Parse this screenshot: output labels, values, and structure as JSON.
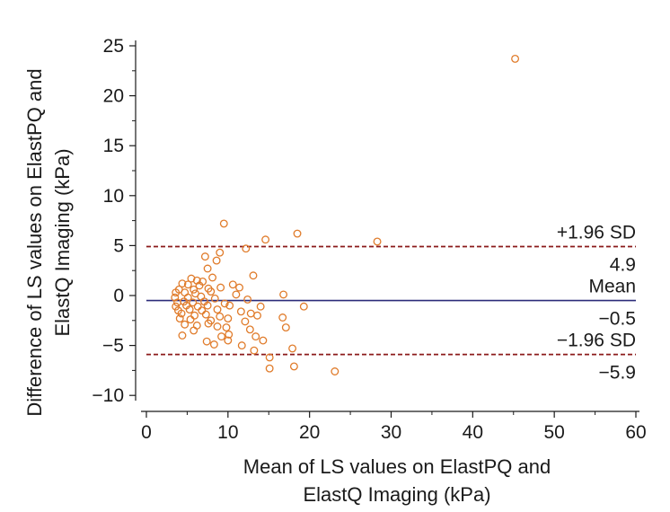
{
  "chart_data": {
    "type": "scatter",
    "title": "",
    "xlabel": [
      "Mean of LS values on ElastPQ and",
      "ElastQ Imaging (kPa)"
    ],
    "ylabel": [
      "Difference of LS values on ElastPQ and",
      "ElastQ Imaging (kPa)"
    ],
    "xlim": [
      0,
      60
    ],
    "ylim": [
      -11,
      26
    ],
    "xticks": [
      "0",
      "10",
      "20",
      "30",
      "40",
      "50",
      "60"
    ],
    "yticks": [
      "25",
      "20",
      "15",
      "10",
      "5",
      "0",
      "−5",
      "−10"
    ],
    "grid": false,
    "colors": {
      "points": "#e07b2a",
      "mean_line": "#2b2b7a",
      "limit_lines": "#8b1a1a",
      "axes": "#1a1a1a"
    },
    "reference_lines": [
      {
        "name": "upper_limit",
        "value": 4.9,
        "label": "+1.96 SD",
        "value_label": "4.9",
        "style": "dashed"
      },
      {
        "name": "mean",
        "value": -0.5,
        "label": "Mean",
        "value_label": "−0.5",
        "style": "solid"
      },
      {
        "name": "lower_limit",
        "value": -5.9,
        "label": "−1.96 SD",
        "value_label": "−5.9",
        "style": "dashed"
      }
    ],
    "points": [
      [
        45.2,
        23.7
      ],
      [
        9.5,
        7.2
      ],
      [
        18.5,
        6.2
      ],
      [
        14.6,
        5.6
      ],
      [
        28.3,
        5.4
      ],
      [
        12.2,
        4.7
      ],
      [
        9.0,
        4.3
      ],
      [
        7.2,
        3.9
      ],
      [
        8.6,
        3.5
      ],
      [
        7.5,
        2.7
      ],
      [
        13.1,
        2.0
      ],
      [
        8.1,
        1.8
      ],
      [
        5.5,
        1.7
      ],
      [
        6.2,
        1.5
      ],
      [
        6.9,
        1.4
      ],
      [
        4.4,
        1.2
      ],
      [
        5.1,
        1.1
      ],
      [
        6.5,
        1.0
      ],
      [
        10.6,
        1.1
      ],
      [
        11.4,
        0.8
      ],
      [
        9.1,
        0.8
      ],
      [
        4.0,
        0.6
      ],
      [
        5.8,
        0.6
      ],
      [
        7.6,
        0.7
      ],
      [
        3.6,
        0.3
      ],
      [
        4.7,
        0.3
      ],
      [
        6.0,
        0.2
      ],
      [
        7.9,
        0.4
      ],
      [
        11.0,
        0.1
      ],
      [
        16.8,
        0.1
      ],
      [
        3.5,
        -0.2
      ],
      [
        5.1,
        -0.2
      ],
      [
        6.7,
        -0.1
      ],
      [
        8.4,
        -0.3
      ],
      [
        12.4,
        -0.4
      ],
      [
        3.8,
        -0.7
      ],
      [
        4.6,
        -0.6
      ],
      [
        5.7,
        -0.7
      ],
      [
        7.1,
        -0.6
      ],
      [
        9.6,
        -0.8
      ],
      [
        3.6,
        -1.1
      ],
      [
        4.9,
        -1.0
      ],
      [
        6.3,
        -1.1
      ],
      [
        7.5,
        -1.0
      ],
      [
        10.2,
        -1.0
      ],
      [
        14.0,
        -1.1
      ],
      [
        19.3,
        -1.1
      ],
      [
        3.9,
        -1.5
      ],
      [
        5.3,
        -1.4
      ],
      [
        6.8,
        -1.5
      ],
      [
        8.7,
        -1.4
      ],
      [
        11.6,
        -1.6
      ],
      [
        4.3,
        -1.8
      ],
      [
        5.9,
        -2.0
      ],
      [
        7.3,
        -1.9
      ],
      [
        9.0,
        -2.1
      ],
      [
        12.8,
        -1.8
      ],
      [
        13.6,
        -2.0
      ],
      [
        4.1,
        -2.3
      ],
      [
        5.4,
        -2.4
      ],
      [
        7.9,
        -2.5
      ],
      [
        10.0,
        -2.3
      ],
      [
        12.1,
        -2.6
      ],
      [
        16.7,
        -2.2
      ],
      [
        4.7,
        -2.9
      ],
      [
        6.2,
        -3.0
      ],
      [
        7.6,
        -2.8
      ],
      [
        9.8,
        -3.2
      ],
      [
        8.7,
        -3.1
      ],
      [
        17.1,
        -3.2
      ],
      [
        5.8,
        -3.5
      ],
      [
        12.7,
        -3.4
      ],
      [
        4.4,
        -4.0
      ],
      [
        10.1,
        -3.9
      ],
      [
        9.2,
        -4.1
      ],
      [
        7.4,
        -4.6
      ],
      [
        10.0,
        -4.5
      ],
      [
        13.4,
        -4.1
      ],
      [
        8.3,
        -4.9
      ],
      [
        11.7,
        -5.0
      ],
      [
        14.3,
        -4.5
      ],
      [
        17.9,
        -5.3
      ],
      [
        13.2,
        -5.5
      ],
      [
        15.1,
        -6.2
      ],
      [
        18.1,
        -7.1
      ],
      [
        15.1,
        -7.3
      ],
      [
        23.1,
        -7.6
      ]
    ]
  }
}
